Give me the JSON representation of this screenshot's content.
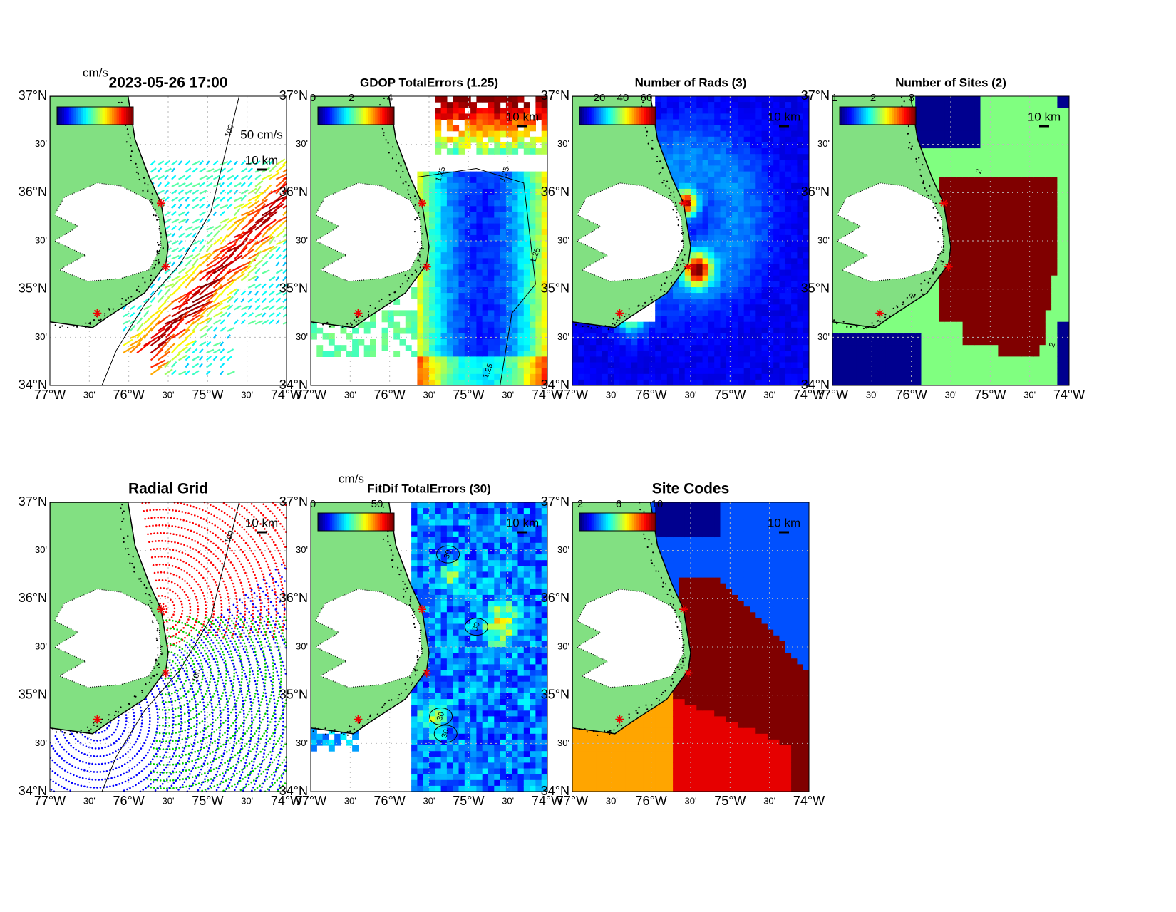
{
  "figure": {
    "lat_ticks": [
      "37°N",
      "30'",
      "36°N",
      "30'",
      "35°N",
      "30'",
      "34°N"
    ],
    "lon_ticks": [
      "77°W",
      "30'",
      "76°W",
      "30'",
      "75°W",
      "30'",
      "74°W"
    ],
    "panels": [
      {
        "title": "2023-05-26 17:00",
        "colorbar_unit": "cm/s",
        "colorbar_ticks": [],
        "scale": "10 km",
        "vector_scale": "50 cm/s",
        "contour_labels": [
          "100"
        ]
      },
      {
        "title": "GDOP TotalErrors (1.25)",
        "colorbar_ticks": [
          "0",
          "2",
          "4"
        ],
        "scale": "10 km",
        "contour_labels": [
          "1.25",
          "1.25",
          "1.25",
          "1.25"
        ]
      },
      {
        "title": "Number of Rads (3)",
        "colorbar_ticks": [
          "20",
          "40",
          "60"
        ],
        "scale": "10 km",
        "contour_labels": []
      },
      {
        "title": "Number of Sites (2)",
        "colorbar_ticks": [
          "1",
          "2",
          "3"
        ],
        "scale": "10 km",
        "contour_labels": [
          "2",
          "2",
          "2"
        ]
      },
      {
        "title": "Radial Grid",
        "colorbar_ticks": [],
        "scale": "10 km",
        "contour_labels": [
          "100",
          "100"
        ]
      },
      {
        "title": "FitDif TotalErrors (30)",
        "colorbar_unit": "cm/s",
        "colorbar_ticks": [
          "0",
          "50"
        ],
        "scale": "10 km",
        "contour_labels": [
          "30",
          "30",
          "30",
          "30"
        ]
      },
      {
        "title": "Site Codes",
        "colorbar_ticks": [
          "2",
          "6",
          "10"
        ],
        "scale": "10 km",
        "contour_labels": []
      }
    ]
  }
}
